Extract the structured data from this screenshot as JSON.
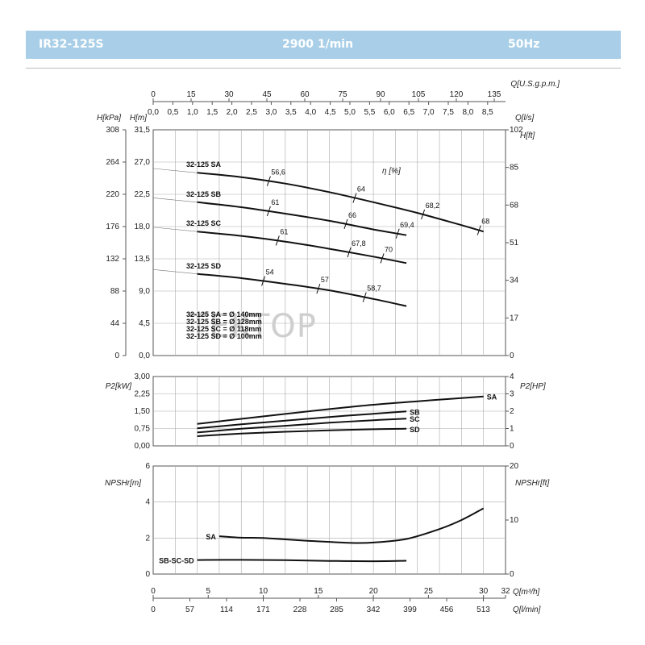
{
  "header": {
    "model": "IR32-125S",
    "speed": "2900 1/min",
    "frequency": "50Hz"
  },
  "watermark": "TEKTOP",
  "colors": {
    "header_bg": "#a9cfe8",
    "curve": "#111111",
    "grid": "#aaaaaa"
  },
  "chart_data": [
    {
      "type": "line",
      "panel": "head",
      "x_axes": {
        "usgpm_label": "Q[U.S.g.p.m.]",
        "usgpm_ticks": [
          "0",
          "15",
          "30",
          "45",
          "60",
          "75",
          "90",
          "105",
          "120",
          "135"
        ],
        "ls_label": "Q[l/s]",
        "ls_ticks": [
          "0,0",
          "0,5",
          "1,0",
          "1,5",
          "2,0",
          "2,5",
          "3,0",
          "3,5",
          "4,0",
          "4,5",
          "5,0",
          "5,5",
          "6,0",
          "6,5",
          "7,0",
          "7,5",
          "8,0",
          "8,5"
        ]
      },
      "y_left_kpa": {
        "label": "H[kPa]",
        "ticks": [
          "308",
          "264",
          "220",
          "176",
          "132",
          "88",
          "44",
          "0"
        ]
      },
      "y_left_m": {
        "label": "H[m]",
        "ticks": [
          "31,5",
          "27,0",
          "22,5",
          "18,0",
          "13,5",
          "9,0",
          "4,5",
          "0,0"
        ],
        "ylim": [
          0,
          31.5
        ]
      },
      "y_right_ft": {
        "label": "H[ft]",
        "ticks": [
          "102",
          "85",
          "68",
          "51",
          "34",
          "17",
          "0"
        ]
      },
      "efficiency_label": "η [%]",
      "xlim_m3h": [
        0,
        32
      ],
      "grid": true,
      "series": [
        {
          "name": "32-125 SA",
          "x": [
            4,
            8,
            12,
            16,
            20,
            24,
            28,
            30
          ],
          "y": [
            25.5,
            24.9,
            24.0,
            22.8,
            21.4,
            19.9,
            18.2,
            17.3
          ],
          "eff_marks": [
            {
              "x": 10.5,
              "y": 24.4,
              "label": "56,6"
            },
            {
              "x": 18.3,
              "y": 22.0,
              "label": "64"
            },
            {
              "x": 24.5,
              "y": 19.7,
              "label": "68,2"
            },
            {
              "x": 29.6,
              "y": 17.5,
              "label": "68"
            }
          ]
        },
        {
          "name": "32-125 SB",
          "x": [
            4,
            8,
            12,
            16,
            20,
            23
          ],
          "y": [
            21.4,
            20.7,
            19.8,
            18.8,
            17.6,
            16.8
          ],
          "eff_marks": [
            {
              "x": 10.5,
              "y": 20.1,
              "label": "61"
            },
            {
              "x": 17.5,
              "y": 18.4,
              "label": "66"
            },
            {
              "x": 22.2,
              "y": 17.0,
              "label": "69,4"
            }
          ]
        },
        {
          "name": "32-125 SC",
          "x": [
            4,
            8,
            12,
            16,
            20,
            23
          ],
          "y": [
            17.3,
            16.7,
            15.9,
            14.9,
            13.8,
            12.9
          ],
          "eff_marks": [
            {
              "x": 11.3,
              "y": 16.0,
              "label": "61"
            },
            {
              "x": 17.8,
              "y": 14.5,
              "label": "67,8"
            },
            {
              "x": 20.8,
              "y": 13.5,
              "label": "70"
            }
          ]
        },
        {
          "name": "32-125 SD",
          "x": [
            4,
            8,
            12,
            16,
            20,
            23
          ],
          "y": [
            11.4,
            10.8,
            10.0,
            9.1,
            7.9,
            6.9
          ],
          "eff_marks": [
            {
              "x": 10.0,
              "y": 10.3,
              "label": "54"
            },
            {
              "x": 15.0,
              "y": 9.2,
              "label": "57"
            },
            {
              "x": 19.2,
              "y": 8.1,
              "label": "58,7"
            }
          ]
        }
      ],
      "diameters": [
        "32-125 SA = Ø 140mm",
        "32-125 SB = Ø 128mm",
        "32-125 SC = Ø 118mm",
        "32-125 SD = Ø 100mm"
      ]
    },
    {
      "type": "line",
      "panel": "power",
      "y_left": {
        "label": "P2[kW]",
        "ticks": [
          "3,00",
          "2,25",
          "1,50",
          "0,75",
          "0,00"
        ],
        "ylim": [
          0,
          3
        ]
      },
      "y_right": {
        "label": "P2[HP]",
        "ticks": [
          "4",
          "3",
          "2",
          "1",
          "0"
        ]
      },
      "xlim_m3h": [
        0,
        32
      ],
      "grid": true,
      "series": [
        {
          "name": "SA",
          "x": [
            4,
            8,
            12,
            16,
            20,
            24,
            28,
            30
          ],
          "y": [
            0.95,
            1.17,
            1.38,
            1.59,
            1.78,
            1.93,
            2.07,
            2.14
          ]
        },
        {
          "name": "SB",
          "x": [
            4,
            8,
            12,
            16,
            20,
            23
          ],
          "y": [
            0.76,
            0.93,
            1.09,
            1.25,
            1.39,
            1.49
          ]
        },
        {
          "name": "SC",
          "x": [
            4,
            8,
            12,
            16,
            20,
            23
          ],
          "y": [
            0.58,
            0.74,
            0.87,
            1.0,
            1.11,
            1.18
          ]
        },
        {
          "name": "SD",
          "x": [
            4,
            8,
            12,
            16,
            20,
            23
          ],
          "y": [
            0.42,
            0.53,
            0.61,
            0.67,
            0.72,
            0.74
          ]
        }
      ]
    },
    {
      "type": "line",
      "panel": "npsh",
      "y_left": {
        "label": "NPSHr[m]",
        "ticks": [
          "6",
          "4",
          "2",
          "0"
        ],
        "ylim": [
          0,
          6
        ]
      },
      "y_right": {
        "label": "NPSHr[ft]",
        "ticks": [
          "20",
          "10",
          "0"
        ]
      },
      "xlim_m3h": [
        0,
        32
      ],
      "grid": true,
      "series": [
        {
          "name": "SA",
          "x": [
            6,
            8,
            10,
            14,
            18,
            20,
            23,
            26,
            28,
            30
          ],
          "y": [
            2.1,
            2.02,
            2.0,
            1.85,
            1.73,
            1.75,
            1.95,
            2.5,
            3.0,
            3.65
          ]
        },
        {
          "name": "SB-SC-SD",
          "x": [
            4,
            8,
            12,
            16,
            20,
            23
          ],
          "y": [
            0.78,
            0.79,
            0.77,
            0.73,
            0.71,
            0.74
          ]
        }
      ],
      "x_bottom": {
        "m3h_label": "Q[m³/h]",
        "m3h_ticks": [
          "0",
          "5",
          "10",
          "15",
          "20",
          "25",
          "30",
          "32"
        ],
        "lmin_label": "Q[l/min]",
        "lmin_ticks": [
          "0",
          "57",
          "114",
          "171",
          "228",
          "285",
          "342",
          "399",
          "456",
          "513"
        ]
      }
    }
  ]
}
